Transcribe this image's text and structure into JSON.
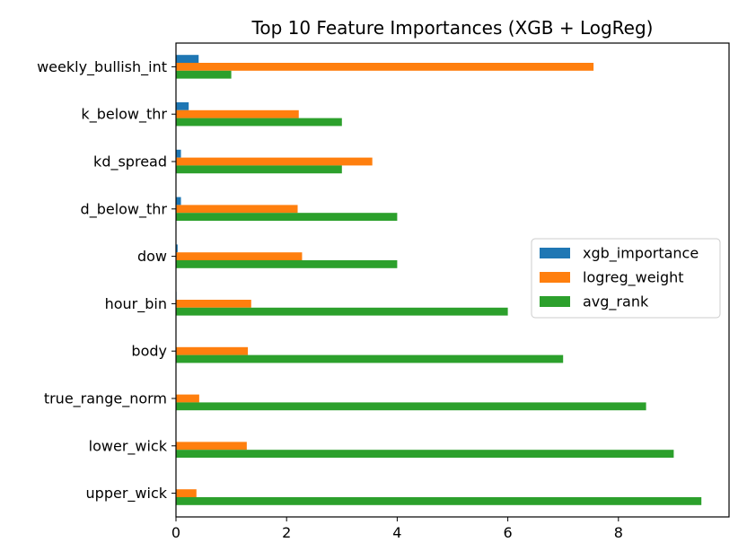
{
  "chart_data": {
    "type": "bar",
    "orientation": "horizontal",
    "title": "Top 10 Feature Importances (XGB + LogReg)",
    "xlabel": "",
    "ylabel": "",
    "categories": [
      "weekly_bullish_int",
      "k_below_thr",
      "kd_spread",
      "d_below_thr",
      "dow",
      "hour_bin",
      "body",
      "true_range_norm",
      "lower_wick",
      "upper_wick"
    ],
    "series": [
      {
        "name": "xgb_importance",
        "color": "#1f77b4",
        "values": [
          0.41,
          0.23,
          0.09,
          0.09,
          0.03,
          0.01,
          0.0,
          0.0,
          0.0,
          0.0
        ]
      },
      {
        "name": "logreg_weight",
        "color": "#ff7f0e",
        "values": [
          7.55,
          2.22,
          3.55,
          2.2,
          2.28,
          1.36,
          1.3,
          0.42,
          1.28,
          0.37
        ]
      },
      {
        "name": "avg_rank",
        "color": "#2ca02c",
        "values": [
          1.0,
          3.0,
          3.0,
          4.0,
          4.0,
          6.0,
          7.0,
          8.5,
          9.0,
          9.5
        ]
      }
    ],
    "xlim": [
      0,
      10
    ],
    "xticks": [
      0,
      2,
      4,
      6,
      8
    ],
    "xtick_labels": [
      "0",
      "2",
      "4",
      "6",
      "8"
    ],
    "grid": false,
    "legend_position": "center-right"
  }
}
